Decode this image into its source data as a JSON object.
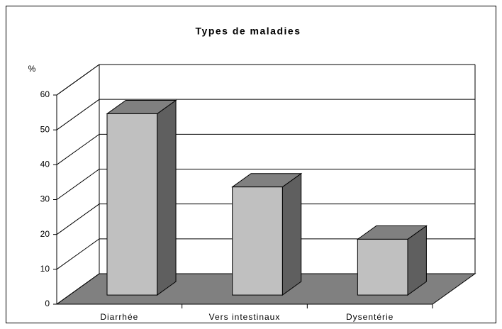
{
  "chart_data": {
    "type": "bar3d",
    "title": "Types de maladies",
    "y_label": "%",
    "categories": [
      "Diarrhée",
      "Vers intestinaux",
      "Dysentérie"
    ],
    "values": [
      52,
      31,
      16
    ],
    "colors": {
      "front": "#c0c0c0",
      "top": "#808080",
      "side": "#5f5f5f",
      "floor": "#808080"
    },
    "ylim": [
      0,
      60
    ],
    "yticks": [
      0,
      10,
      20,
      30,
      40,
      50,
      60
    ],
    "grid": true
  }
}
